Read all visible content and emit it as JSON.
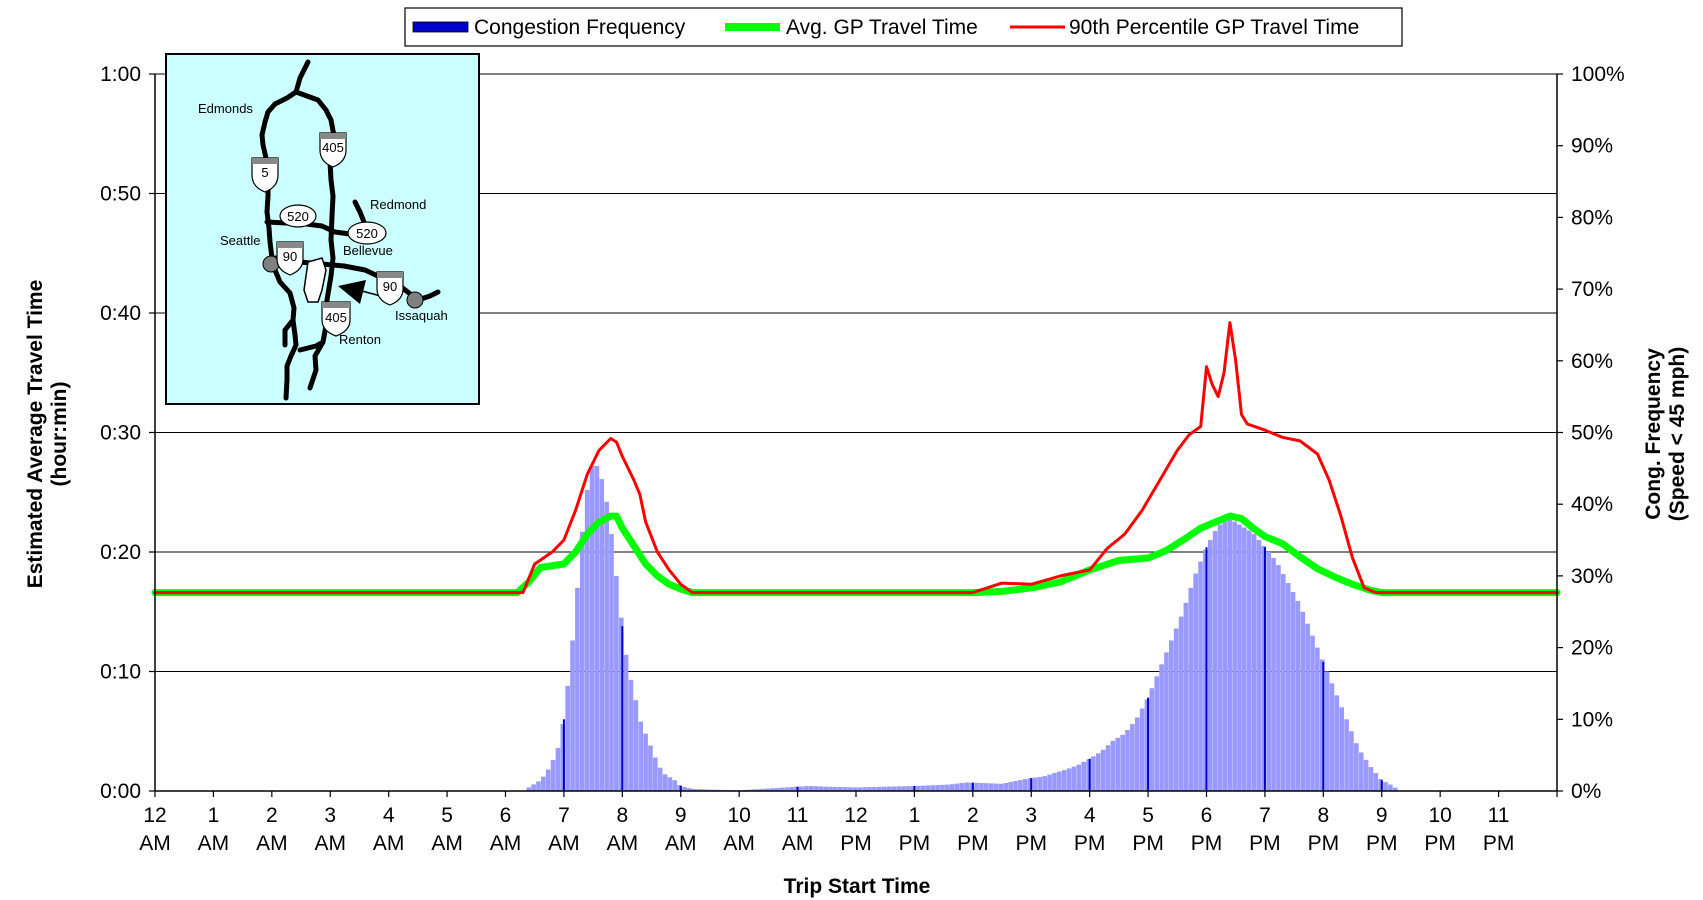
{
  "chart_data": {
    "type": "bar+line",
    "legend": {
      "position": "top",
      "items": [
        {
          "label": "Congestion Frequency",
          "color": "#0000cc",
          "kind": "bar"
        },
        {
          "label": "Avg. GP Travel Time",
          "color": "#00ff00",
          "kind": "line"
        },
        {
          "label": "90th Percentile GP Travel Time",
          "color": "#ff0000",
          "kind": "line"
        }
      ]
    },
    "xlabel": "Trip Start Time",
    "ylabel_left": "Estimated Average Travel Time",
    "ylabel_left_unit": "(hour:min)",
    "ylabel_right": "Cong. Frequency",
    "ylabel_right_unit": "(Speed < 45 mph)",
    "x_range_hours": [
      0,
      24
    ],
    "y_left_range_min": [
      0,
      60
    ],
    "y_left_ticks": [
      "0:00",
      "0:10",
      "0:20",
      "0:30",
      "0:40",
      "0:50",
      "1:00"
    ],
    "y_right_range_pct": [
      0,
      100
    ],
    "y_right_ticks": [
      "0%",
      "10%",
      "20%",
      "30%",
      "40%",
      "50%",
      "60%",
      "70%",
      "80%",
      "90%",
      "100%"
    ],
    "x_tick_labels": [
      [
        "12",
        "AM"
      ],
      [
        "1",
        "AM"
      ],
      [
        "2",
        "AM"
      ],
      [
        "3",
        "AM"
      ],
      [
        "4",
        "AM"
      ],
      [
        "5",
        "AM"
      ],
      [
        "6",
        "AM"
      ],
      [
        "7",
        "AM"
      ],
      [
        "8",
        "AM"
      ],
      [
        "9",
        "AM"
      ],
      [
        "10",
        "AM"
      ],
      [
        "11",
        "AM"
      ],
      [
        "12",
        "PM"
      ],
      [
        "1",
        "PM"
      ],
      [
        "2",
        "PM"
      ],
      [
        "3",
        "PM"
      ],
      [
        "4",
        "PM"
      ],
      [
        "5",
        "PM"
      ],
      [
        "6",
        "PM"
      ],
      [
        "7",
        "PM"
      ],
      [
        "8",
        "PM"
      ],
      [
        "9",
        "PM"
      ],
      [
        "10",
        "PM"
      ],
      [
        "11",
        "PM"
      ]
    ],
    "gridlines": "horizontal",
    "bar_color": "#9999ff",
    "bar_highlight_color": "#0000cc",
    "congestion_frequency": {
      "unit": "percent",
      "points": [
        [
          6.4,
          0.5
        ],
        [
          6.5,
          1
        ],
        [
          6.6,
          1.5
        ],
        [
          6.7,
          2.5
        ],
        [
          6.8,
          4
        ],
        [
          6.9,
          6
        ],
        [
          7.0,
          10
        ],
        [
          7.1,
          17
        ],
        [
          7.2,
          25
        ],
        [
          7.3,
          35
        ],
        [
          7.4,
          42
        ],
        [
          7.5,
          46
        ],
        [
          7.6,
          45
        ],
        [
          7.7,
          42
        ],
        [
          7.8,
          37
        ],
        [
          7.9,
          30
        ],
        [
          8.0,
          23
        ],
        [
          8.1,
          17
        ],
        [
          8.2,
          14
        ],
        [
          8.3,
          10
        ],
        [
          8.4,
          8
        ],
        [
          8.5,
          6
        ],
        [
          8.6,
          4
        ],
        [
          8.7,
          2.5
        ],
        [
          8.8,
          2
        ],
        [
          8.9,
          1.5
        ],
        [
          9.0,
          0.7
        ],
        [
          9.2,
          0.3
        ],
        [
          9.5,
          0.2
        ],
        [
          10.0,
          0.1
        ],
        [
          11.2,
          0.7
        ],
        [
          11.5,
          0.6
        ],
        [
          12.0,
          0.5
        ],
        [
          12.5,
          0.6
        ],
        [
          13.0,
          0.7
        ],
        [
          13.3,
          0.8
        ],
        [
          13.6,
          0.9
        ],
        [
          13.9,
          1.2
        ],
        [
          14.2,
          1.1
        ],
        [
          14.5,
          1.0
        ],
        [
          14.8,
          1.5
        ],
        [
          15.0,
          1.8
        ],
        [
          15.2,
          2.0
        ],
        [
          15.4,
          2.5
        ],
        [
          15.6,
          3.0
        ],
        [
          15.8,
          3.6
        ],
        [
          16.0,
          4.5
        ],
        [
          16.2,
          5.5
        ],
        [
          16.4,
          7
        ],
        [
          16.6,
          8
        ],
        [
          16.8,
          10
        ],
        [
          17.0,
          13
        ],
        [
          17.2,
          17
        ],
        [
          17.4,
          21
        ],
        [
          17.6,
          25
        ],
        [
          17.8,
          30
        ],
        [
          18.0,
          34
        ],
        [
          18.2,
          37
        ],
        [
          18.4,
          38
        ],
        [
          18.6,
          37
        ],
        [
          18.8,
          36
        ],
        [
          19.0,
          34
        ],
        [
          19.2,
          32
        ],
        [
          19.4,
          29
        ],
        [
          19.6,
          26
        ],
        [
          19.8,
          22
        ],
        [
          20.0,
          18
        ],
        [
          20.2,
          14
        ],
        [
          20.4,
          10
        ],
        [
          20.6,
          6
        ],
        [
          20.8,
          3.5
        ],
        [
          21.0,
          1.5
        ],
        [
          21.2,
          0.7
        ],
        [
          21.3,
          0
        ]
      ]
    },
    "avg_gp_travel_time": {
      "unit": "minutes",
      "points": [
        [
          0,
          16.6
        ],
        [
          6.2,
          16.6
        ],
        [
          6.4,
          17.5
        ],
        [
          6.6,
          18.7
        ],
        [
          7.0,
          19
        ],
        [
          7.2,
          20
        ],
        [
          7.4,
          21.5
        ],
        [
          7.6,
          22.5
        ],
        [
          7.8,
          23
        ],
        [
          7.9,
          23
        ],
        [
          8.0,
          22
        ],
        [
          8.2,
          20.5
        ],
        [
          8.4,
          19
        ],
        [
          8.6,
          18
        ],
        [
          8.8,
          17.3
        ],
        [
          9.0,
          16.9
        ],
        [
          9.2,
          16.6
        ],
        [
          14.0,
          16.6
        ],
        [
          14.5,
          16.7
        ],
        [
          15.0,
          17
        ],
        [
          15.5,
          17.5
        ],
        [
          16.0,
          18.5
        ],
        [
          16.5,
          19.3
        ],
        [
          17.0,
          19.5
        ],
        [
          17.3,
          20.1
        ],
        [
          17.6,
          21
        ],
        [
          17.9,
          22
        ],
        [
          18.2,
          22.6
        ],
        [
          18.4,
          23
        ],
        [
          18.6,
          22.8
        ],
        [
          18.8,
          22
        ],
        [
          19.0,
          21.3
        ],
        [
          19.3,
          20.7
        ],
        [
          19.6,
          19.6
        ],
        [
          19.9,
          18.6
        ],
        [
          20.2,
          17.9
        ],
        [
          20.5,
          17.3
        ],
        [
          20.8,
          16.8
        ],
        [
          21.0,
          16.6
        ],
        [
          24.0,
          16.6
        ]
      ]
    },
    "p90_gp_travel_time": {
      "unit": "minutes",
      "points": [
        [
          0,
          16.6
        ],
        [
          6.3,
          16.6
        ],
        [
          6.5,
          19
        ],
        [
          6.8,
          20
        ],
        [
          7.0,
          21
        ],
        [
          7.2,
          23.5
        ],
        [
          7.4,
          26.5
        ],
        [
          7.6,
          28.5
        ],
        [
          7.8,
          29.5
        ],
        [
          7.9,
          29.2
        ],
        [
          8.0,
          28
        ],
        [
          8.2,
          26
        ],
        [
          8.3,
          24.8
        ],
        [
          8.4,
          22.5
        ],
        [
          8.6,
          20
        ],
        [
          8.8,
          18.5
        ],
        [
          9.0,
          17.3
        ],
        [
          9.2,
          16.6
        ],
        [
          14.0,
          16.6
        ],
        [
          14.5,
          17.4
        ],
        [
          15.0,
          17.3
        ],
        [
          15.5,
          18
        ],
        [
          16.0,
          18.5
        ],
        [
          16.3,
          20.3
        ],
        [
          16.6,
          21.5
        ],
        [
          16.9,
          23.5
        ],
        [
          17.2,
          26
        ],
        [
          17.5,
          28.5
        ],
        [
          17.7,
          29.8
        ],
        [
          17.9,
          30.5
        ],
        [
          18.0,
          35.5
        ],
        [
          18.1,
          34
        ],
        [
          18.2,
          33
        ],
        [
          18.3,
          35
        ],
        [
          18.4,
          39.2
        ],
        [
          18.5,
          36
        ],
        [
          18.6,
          31.5
        ],
        [
          18.7,
          30.7
        ],
        [
          19.0,
          30.2
        ],
        [
          19.3,
          29.6
        ],
        [
          19.6,
          29.3
        ],
        [
          19.9,
          28.2
        ],
        [
          20.1,
          26
        ],
        [
          20.3,
          23
        ],
        [
          20.5,
          19.5
        ],
        [
          20.7,
          17
        ],
        [
          20.9,
          16.6
        ],
        [
          24.0,
          16.6
        ]
      ]
    }
  },
  "inset_map": {
    "background": "#ccffff",
    "cities": [
      "Edmonds",
      "Redmond",
      "Seattle",
      "Bellevue",
      "Issaquah",
      "Renton"
    ],
    "route_shields": [
      "405",
      "5",
      "520",
      "520",
      "90",
      "90",
      "405"
    ]
  }
}
